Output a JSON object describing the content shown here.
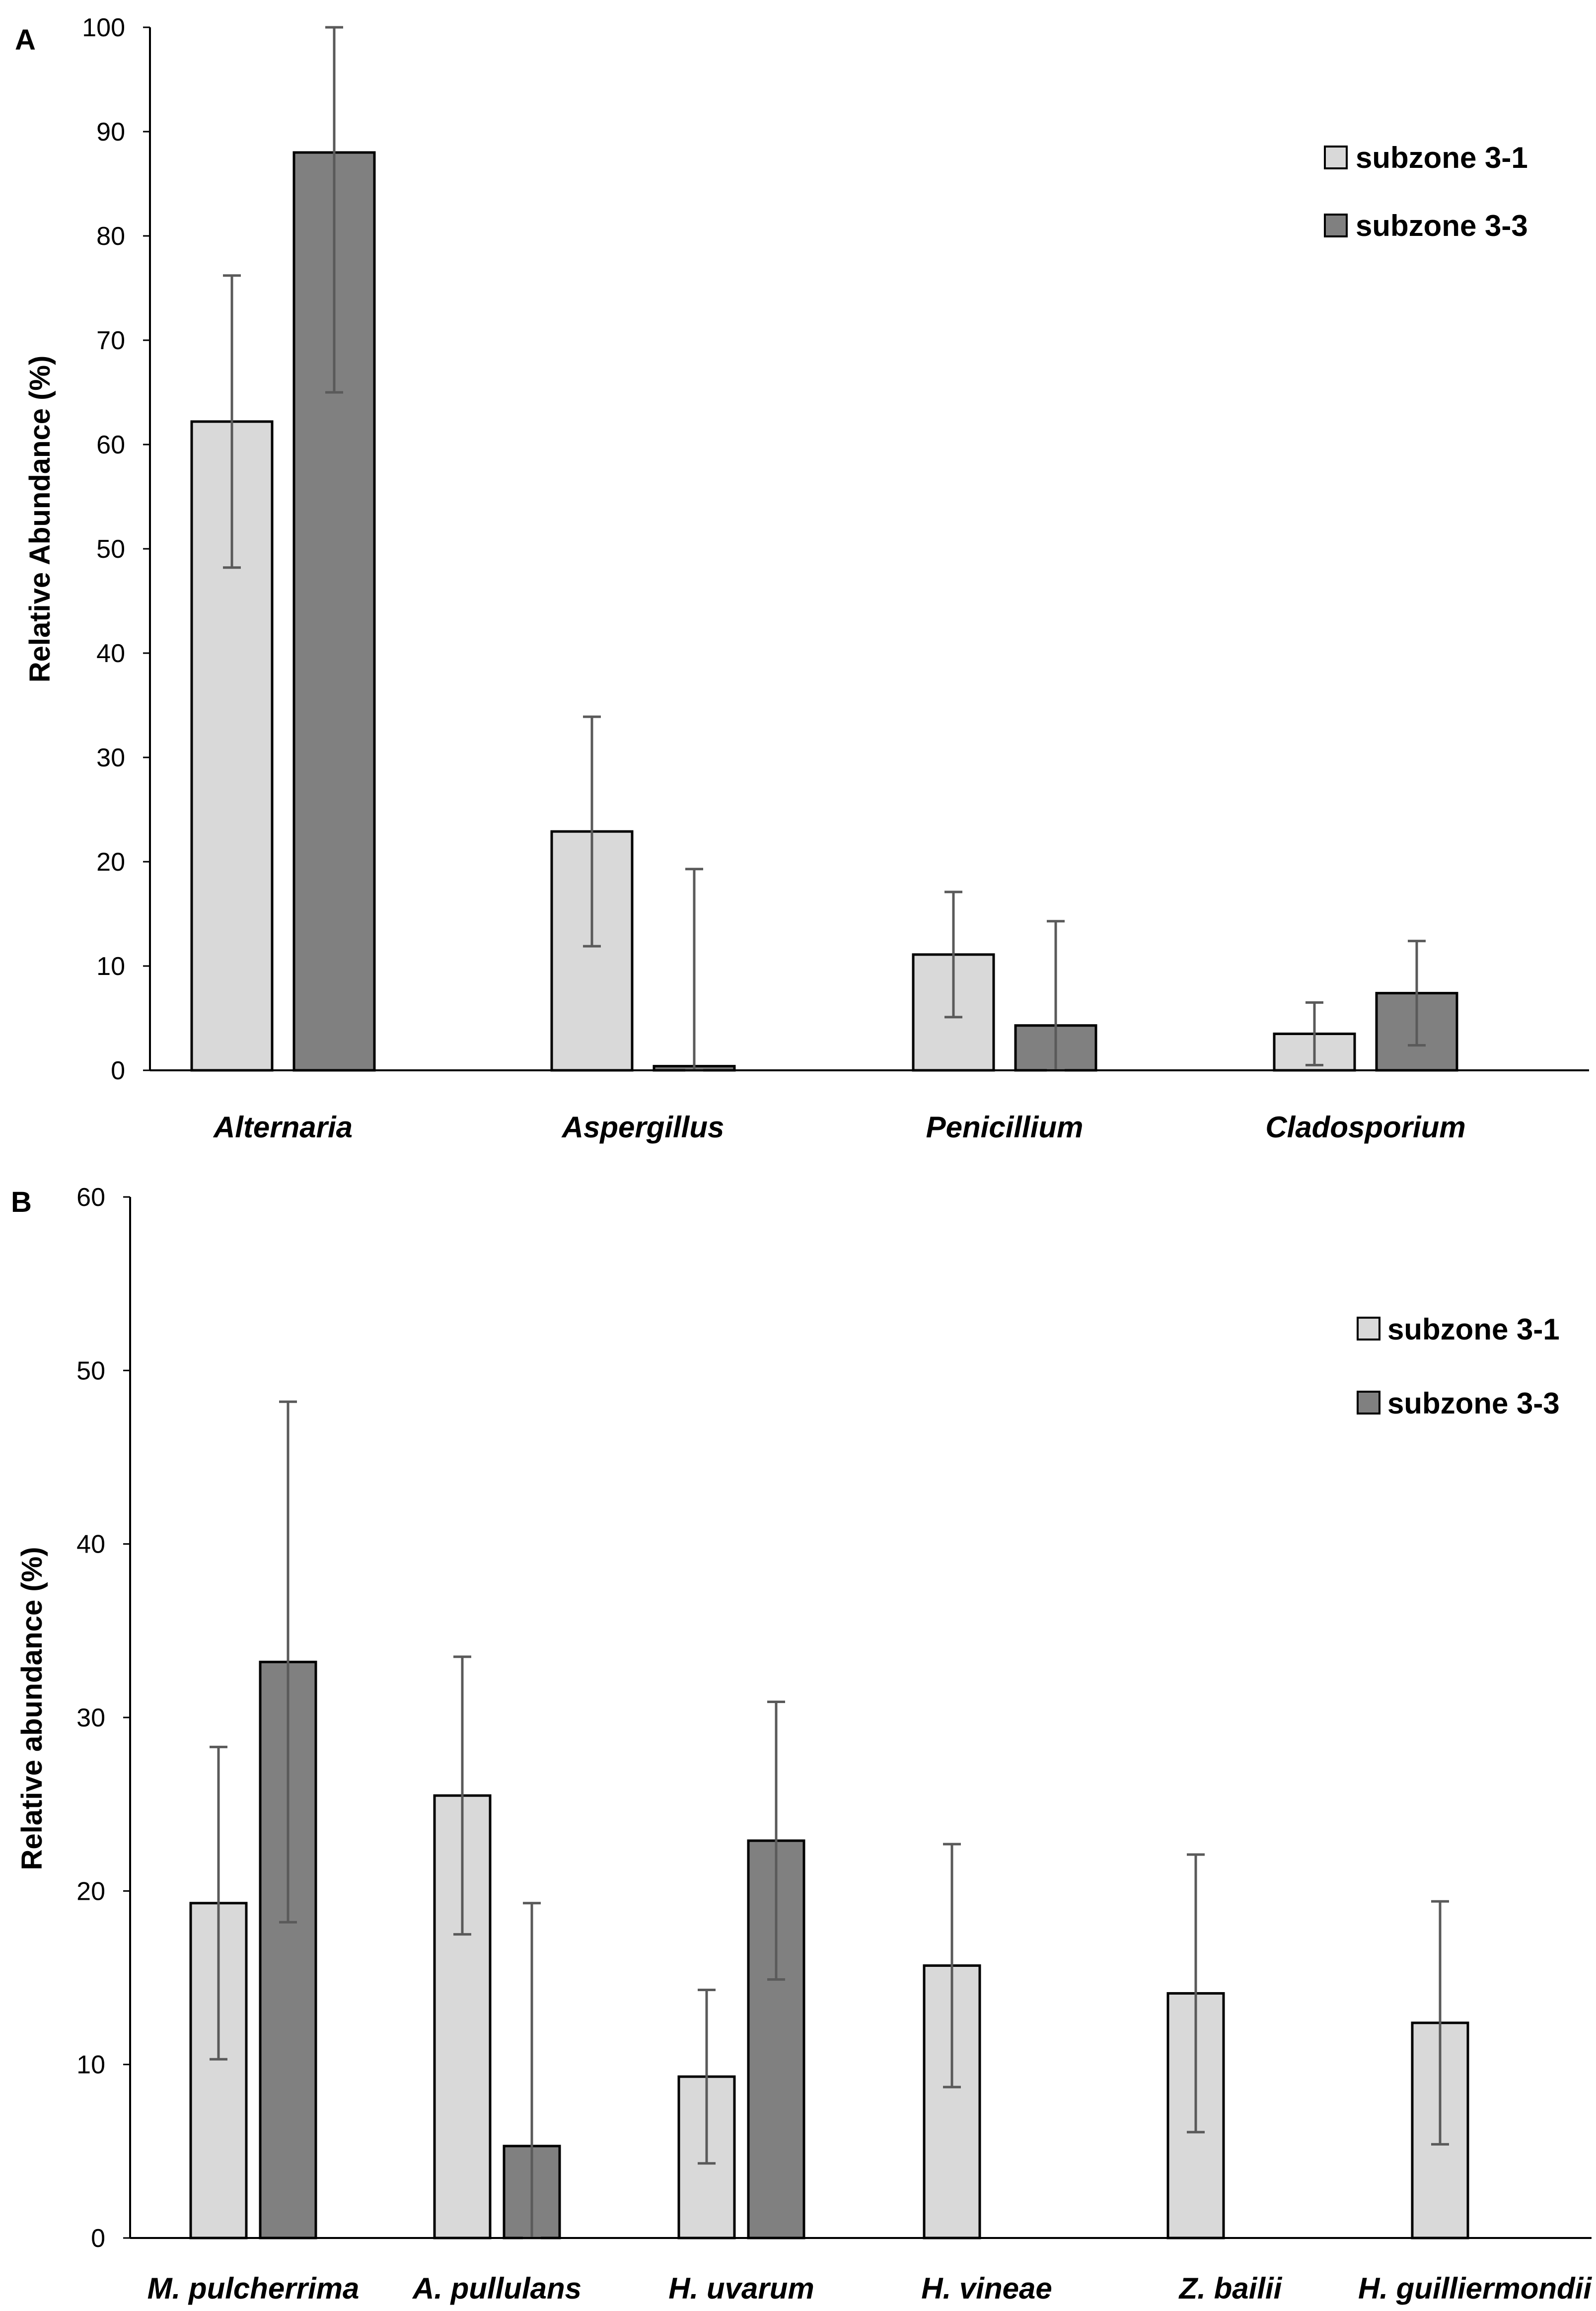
{
  "chart_data": [
    {
      "type": "bar",
      "panel_label": "A",
      "title": "",
      "xlabel": "",
      "ylabel": "Relative Abundance (%)",
      "ylim": [
        0,
        100
      ],
      "yticks": [
        0,
        10,
        20,
        30,
        40,
        50,
        60,
        70,
        80,
        90,
        100
      ],
      "categories": [
        "Alternaria",
        "Aspergillus",
        "Penicillium",
        "Cladosporium"
      ],
      "series": [
        {
          "name": "subzone 3-1",
          "color": "#d9d9d9",
          "values": [
            62.2,
            22.9,
            11.1,
            3.5
          ],
          "error": [
            14.0,
            11.0,
            6.0,
            3.0
          ]
        },
        {
          "name": "subzone 3-3",
          "color": "#808080",
          "values": [
            88.0,
            0.4,
            4.3,
            7.4
          ],
          "error": [
            23.0,
            18.9,
            10.0,
            5.0
          ]
        }
      ],
      "legend_position": "top-right",
      "grid": false
    },
    {
      "type": "bar",
      "panel_label": "B",
      "title": "",
      "xlabel": "",
      "ylabel": "Relative abundance (%)",
      "ylim": [
        0,
        60
      ],
      "yticks": [
        0,
        10,
        20,
        30,
        40,
        50,
        60
      ],
      "categories": [
        "M. pulcherrima",
        "A. pullulans",
        "H. uvarum",
        "H. vineae",
        "Z. bailii",
        "H. guilliermondii"
      ],
      "series": [
        {
          "name": "subzone 3-1",
          "color": "#d9d9d9",
          "values": [
            19.3,
            25.5,
            9.3,
            15.7,
            14.1,
            12.4
          ],
          "error": [
            9.0,
            8.0,
            5.0,
            7.0,
            8.0,
            7.0
          ]
        },
        {
          "name": "subzone 3-3",
          "color": "#808080",
          "values": [
            33.2,
            5.3,
            22.9,
            null,
            null,
            null
          ],
          "error": [
            15.0,
            14.0,
            8.0,
            null,
            null,
            null
          ]
        }
      ],
      "legend_position": "top-right",
      "grid": false
    }
  ]
}
